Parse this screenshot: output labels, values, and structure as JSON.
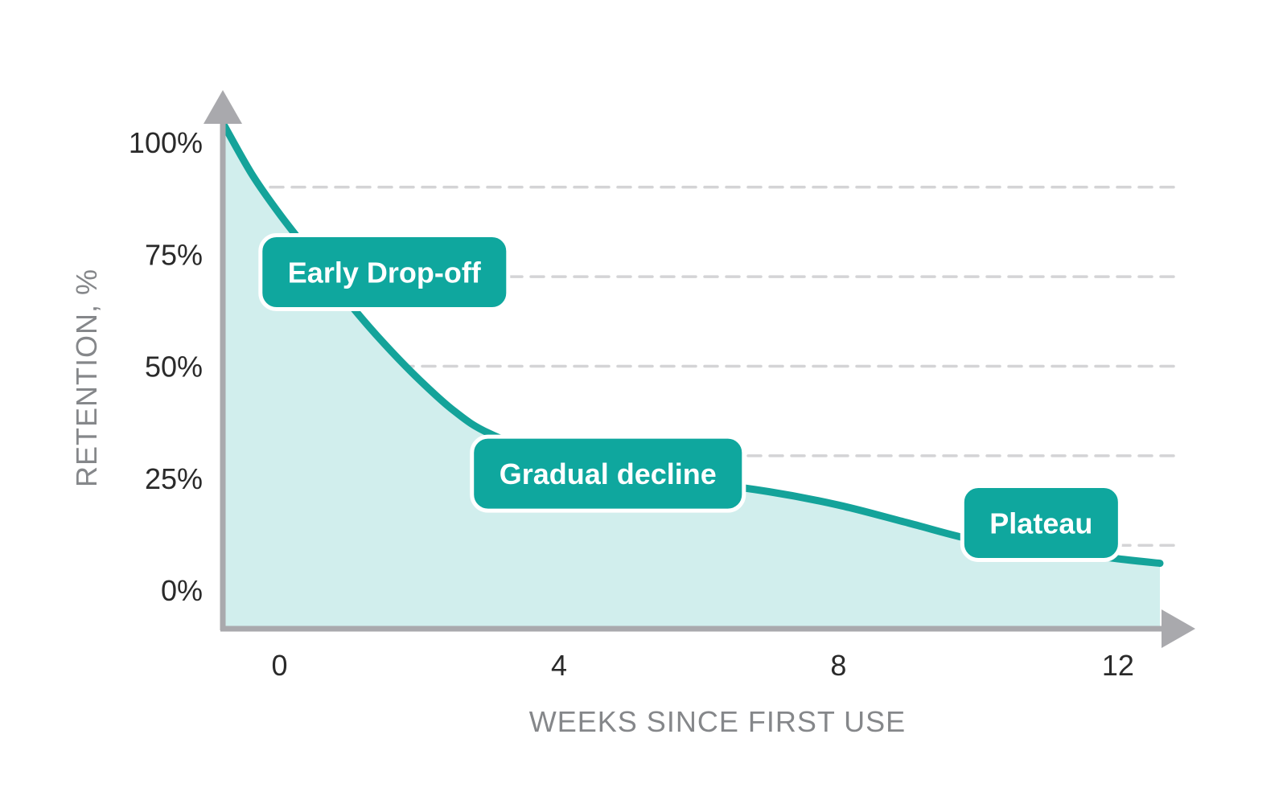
{
  "chart_data": {
    "type": "area",
    "title": "",
    "xlabel": "WEEKS SINCE FIRST USE",
    "ylabel": "RETENTION, %",
    "x_ticks": [
      0,
      4,
      8,
      12
    ],
    "y_ticks": [
      "0%",
      "25%",
      "50%",
      "75%",
      "100%"
    ],
    "xlim": [
      -0.8,
      12.6
    ],
    "ylim": [
      0,
      100
    ],
    "grid": "dashed horizontal",
    "series": [
      {
        "x": [
          -0.8,
          -0.4,
          0,
          0.5,
          1,
          1.5,
          2,
          2.5,
          3,
          4,
          5,
          6,
          7,
          8,
          9,
          10,
          11,
          12,
          12.6
        ],
        "y": [
          104,
          93,
          84,
          74,
          64,
          55,
          47,
          40,
          35,
          29,
          25,
          24,
          22,
          19,
          15,
          11,
          9,
          7,
          6
        ]
      }
    ],
    "annotations": [
      {
        "text": "Early Drop-off",
        "x": 1.5,
        "y": 71
      },
      {
        "text": "Gradual decline",
        "x": 4.7,
        "y": 26
      },
      {
        "text": "Plateau",
        "x": 10.9,
        "y": 15
      }
    ],
    "colors": {
      "line": "#14a39a",
      "fill": "#d1eeed",
      "label_bg": "#0fa79e",
      "axis": "#a9a9ad",
      "grid": "#d4d4d6"
    }
  }
}
